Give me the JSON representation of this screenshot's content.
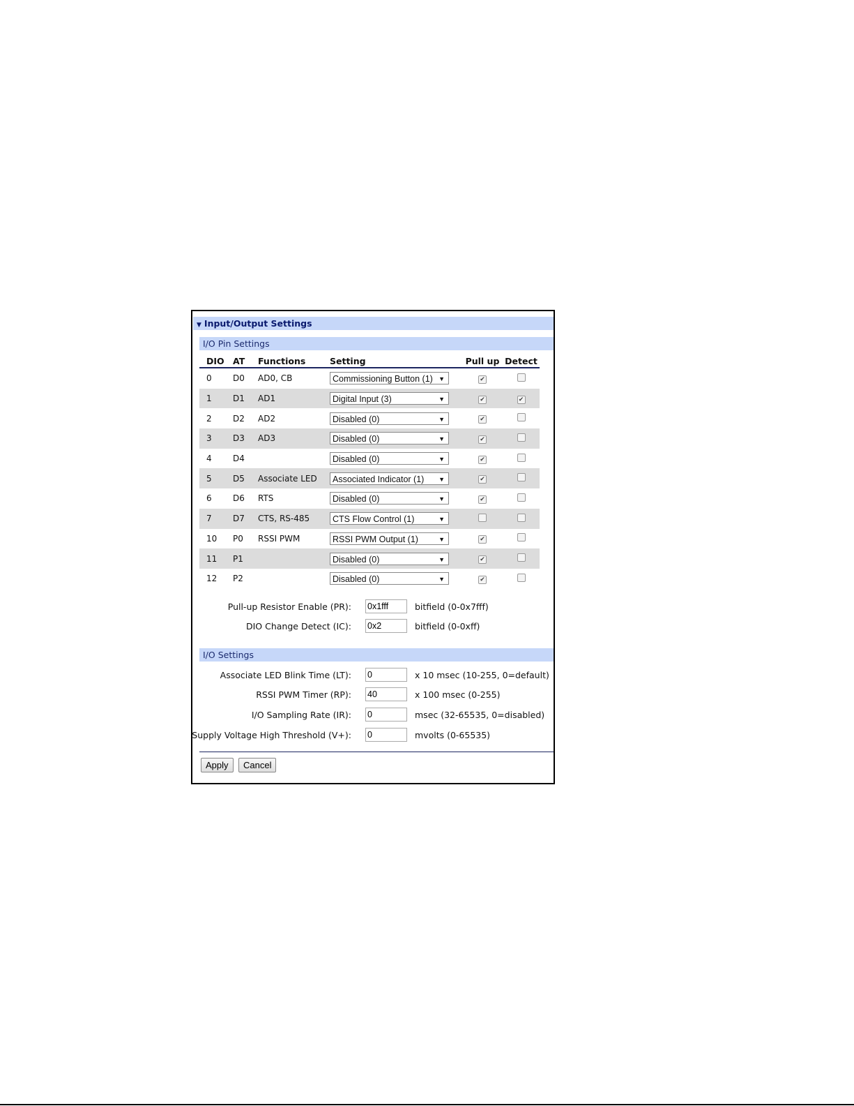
{
  "section_title": "Input/Output Settings",
  "pin_settings": {
    "title": "I/O Pin Settings",
    "columns": [
      "DIO",
      "AT",
      "Functions",
      "Setting",
      "Pull up",
      "Detect"
    ],
    "rows": [
      {
        "dio": "0",
        "at": "D0",
        "functions": "AD0, CB",
        "setting": "Commissioning Button (1)",
        "pullup": true,
        "detect": false
      },
      {
        "dio": "1",
        "at": "D1",
        "functions": "AD1",
        "setting": "Digital Input (3)",
        "pullup": true,
        "detect": true
      },
      {
        "dio": "2",
        "at": "D2",
        "functions": "AD2",
        "setting": "Disabled (0)",
        "pullup": true,
        "detect": false
      },
      {
        "dio": "3",
        "at": "D3",
        "functions": "AD3",
        "setting": "Disabled (0)",
        "pullup": true,
        "detect": false
      },
      {
        "dio": "4",
        "at": "D4",
        "functions": "",
        "setting": "Disabled (0)",
        "pullup": true,
        "detect": false
      },
      {
        "dio": "5",
        "at": "D5",
        "functions": "Associate LED",
        "setting": "Associated Indicator (1)",
        "pullup": true,
        "detect": false
      },
      {
        "dio": "6",
        "at": "D6",
        "functions": "RTS",
        "setting": "Disabled (0)",
        "pullup": true,
        "detect": false
      },
      {
        "dio": "7",
        "at": "D7",
        "functions": "CTS, RS-485",
        "setting": "CTS Flow Control (1)",
        "pullup": false,
        "detect": false
      },
      {
        "dio": "10",
        "at": "P0",
        "functions": "RSSI PWM",
        "setting": "RSSI PWM Output (1)",
        "pullup": true,
        "detect": false
      },
      {
        "dio": "11",
        "at": "P1",
        "functions": "",
        "setting": "Disabled (0)",
        "pullup": true,
        "detect": false
      },
      {
        "dio": "12",
        "at": "P2",
        "functions": "",
        "setting": "Disabled (0)",
        "pullup": true,
        "detect": false
      }
    ],
    "fields": [
      {
        "label": "Pull-up Resistor Enable (PR):",
        "value": "0x1fff",
        "hint": "bitfield (0-0x7fff)"
      },
      {
        "label": "DIO Change Detect (IC):",
        "value": "0x2",
        "hint": "bitfield (0-0xff)"
      }
    ]
  },
  "io_settings": {
    "title": "I/O Settings",
    "fields": [
      {
        "label": "Associate LED Blink Time (LT):",
        "value": "0",
        "hint": "x 10 msec (10-255, 0=default)"
      },
      {
        "label": "RSSI PWM Timer (RP):",
        "value": "40",
        "hint": "x 100 msec (0-255)"
      },
      {
        "label": "I/O Sampling Rate (IR):",
        "value": "0",
        "hint": "msec (32-65535, 0=disabled)"
      },
      {
        "label": "Supply Voltage High Threshold (V+):",
        "value": "0",
        "hint": "mvolts (0-65535)"
      }
    ]
  },
  "buttons": {
    "apply": "Apply",
    "cancel": "Cancel"
  },
  "colors": {
    "header_bg": "#c6d7f9",
    "header_text": "#0a1a6e",
    "row_alt": "#dcdcdc"
  }
}
